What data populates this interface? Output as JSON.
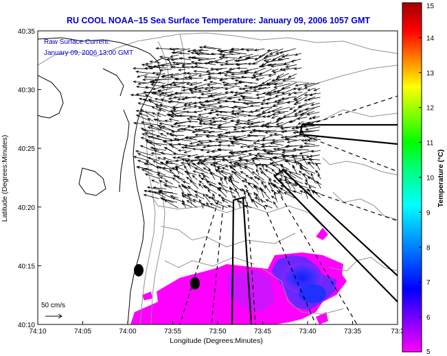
{
  "title": "RU COOL  NOAA–15  Sea Surface Temperature:  January 09, 2006 1057 GMT",
  "overlay": {
    "line1": "Raw Surface Current:",
    "line2": "January 09, 2006 13:00 GMT"
  },
  "scale_label": "50 cm/s",
  "x_axis": {
    "label": "Longitude (Degrees:Minutes)",
    "ticks": [
      "74:10",
      "74:05",
      "74:00",
      "73:55",
      "73:50",
      "73:45",
      "73:40",
      "73:35",
      "73:3"
    ]
  },
  "y_axis": {
    "label": "Latitude (Degrees:Minutes)",
    "ticks": [
      "40:35",
      "40:30",
      "40:25",
      "40:20",
      "40:15",
      "40:10"
    ]
  },
  "colorbar": {
    "label": "Temperature (°C)",
    "ticks": [
      "15",
      "14",
      "13",
      "12",
      "11",
      "10",
      "9",
      "8",
      "7",
      "6",
      "5"
    ],
    "colors": [
      "#ff00ff",
      "#8000ff",
      "#0000ff",
      "#0080ff",
      "#00ffff",
      "#00ff80",
      "#00ff00",
      "#80ff00",
      "#ffff00",
      "#ff8000",
      "#ff0000",
      "#a00000"
    ]
  },
  "colors": {
    "title": "#0000cc",
    "overlay": "#0000cc",
    "sst_warm": "#ff00ff",
    "sst_cool": "#3040ff",
    "land_contour": "#808080"
  }
}
